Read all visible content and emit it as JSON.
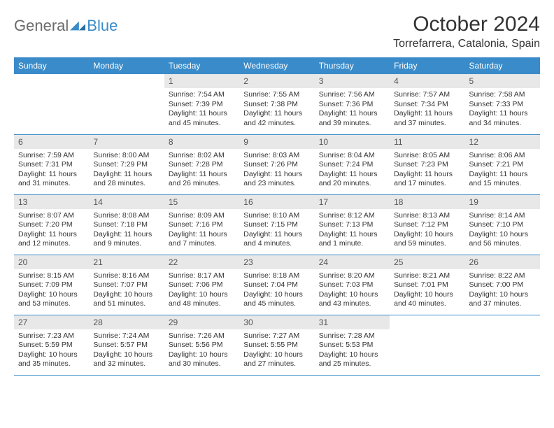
{
  "brand": {
    "part1": "General",
    "part2": "Blue"
  },
  "title": "October 2024",
  "location": "Torrefarrera, Catalonia, Spain",
  "colors": {
    "accent": "#3a8bc9",
    "daynum_bg": "#e8e8e8",
    "text": "#333333",
    "logo_gray": "#6b6b6b"
  },
  "day_headers": [
    "Sunday",
    "Monday",
    "Tuesday",
    "Wednesday",
    "Thursday",
    "Friday",
    "Saturday"
  ],
  "weeks": [
    [
      {
        "n": "",
        "sr": "",
        "ss": "",
        "dl": ""
      },
      {
        "n": "",
        "sr": "",
        "ss": "",
        "dl": ""
      },
      {
        "n": "1",
        "sr": "Sunrise: 7:54 AM",
        "ss": "Sunset: 7:39 PM",
        "dl": "Daylight: 11 hours and 45 minutes."
      },
      {
        "n": "2",
        "sr": "Sunrise: 7:55 AM",
        "ss": "Sunset: 7:38 PM",
        "dl": "Daylight: 11 hours and 42 minutes."
      },
      {
        "n": "3",
        "sr": "Sunrise: 7:56 AM",
        "ss": "Sunset: 7:36 PM",
        "dl": "Daylight: 11 hours and 39 minutes."
      },
      {
        "n": "4",
        "sr": "Sunrise: 7:57 AM",
        "ss": "Sunset: 7:34 PM",
        "dl": "Daylight: 11 hours and 37 minutes."
      },
      {
        "n": "5",
        "sr": "Sunrise: 7:58 AM",
        "ss": "Sunset: 7:33 PM",
        "dl": "Daylight: 11 hours and 34 minutes."
      }
    ],
    [
      {
        "n": "6",
        "sr": "Sunrise: 7:59 AM",
        "ss": "Sunset: 7:31 PM",
        "dl": "Daylight: 11 hours and 31 minutes."
      },
      {
        "n": "7",
        "sr": "Sunrise: 8:00 AM",
        "ss": "Sunset: 7:29 PM",
        "dl": "Daylight: 11 hours and 28 minutes."
      },
      {
        "n": "8",
        "sr": "Sunrise: 8:02 AM",
        "ss": "Sunset: 7:28 PM",
        "dl": "Daylight: 11 hours and 26 minutes."
      },
      {
        "n": "9",
        "sr": "Sunrise: 8:03 AM",
        "ss": "Sunset: 7:26 PM",
        "dl": "Daylight: 11 hours and 23 minutes."
      },
      {
        "n": "10",
        "sr": "Sunrise: 8:04 AM",
        "ss": "Sunset: 7:24 PM",
        "dl": "Daylight: 11 hours and 20 minutes."
      },
      {
        "n": "11",
        "sr": "Sunrise: 8:05 AM",
        "ss": "Sunset: 7:23 PM",
        "dl": "Daylight: 11 hours and 17 minutes."
      },
      {
        "n": "12",
        "sr": "Sunrise: 8:06 AM",
        "ss": "Sunset: 7:21 PM",
        "dl": "Daylight: 11 hours and 15 minutes."
      }
    ],
    [
      {
        "n": "13",
        "sr": "Sunrise: 8:07 AM",
        "ss": "Sunset: 7:20 PM",
        "dl": "Daylight: 11 hours and 12 minutes."
      },
      {
        "n": "14",
        "sr": "Sunrise: 8:08 AM",
        "ss": "Sunset: 7:18 PM",
        "dl": "Daylight: 11 hours and 9 minutes."
      },
      {
        "n": "15",
        "sr": "Sunrise: 8:09 AM",
        "ss": "Sunset: 7:16 PM",
        "dl": "Daylight: 11 hours and 7 minutes."
      },
      {
        "n": "16",
        "sr": "Sunrise: 8:10 AM",
        "ss": "Sunset: 7:15 PM",
        "dl": "Daylight: 11 hours and 4 minutes."
      },
      {
        "n": "17",
        "sr": "Sunrise: 8:12 AM",
        "ss": "Sunset: 7:13 PM",
        "dl": "Daylight: 11 hours and 1 minute."
      },
      {
        "n": "18",
        "sr": "Sunrise: 8:13 AM",
        "ss": "Sunset: 7:12 PM",
        "dl": "Daylight: 10 hours and 59 minutes."
      },
      {
        "n": "19",
        "sr": "Sunrise: 8:14 AM",
        "ss": "Sunset: 7:10 PM",
        "dl": "Daylight: 10 hours and 56 minutes."
      }
    ],
    [
      {
        "n": "20",
        "sr": "Sunrise: 8:15 AM",
        "ss": "Sunset: 7:09 PM",
        "dl": "Daylight: 10 hours and 53 minutes."
      },
      {
        "n": "21",
        "sr": "Sunrise: 8:16 AM",
        "ss": "Sunset: 7:07 PM",
        "dl": "Daylight: 10 hours and 51 minutes."
      },
      {
        "n": "22",
        "sr": "Sunrise: 8:17 AM",
        "ss": "Sunset: 7:06 PM",
        "dl": "Daylight: 10 hours and 48 minutes."
      },
      {
        "n": "23",
        "sr": "Sunrise: 8:18 AM",
        "ss": "Sunset: 7:04 PM",
        "dl": "Daylight: 10 hours and 45 minutes."
      },
      {
        "n": "24",
        "sr": "Sunrise: 8:20 AM",
        "ss": "Sunset: 7:03 PM",
        "dl": "Daylight: 10 hours and 43 minutes."
      },
      {
        "n": "25",
        "sr": "Sunrise: 8:21 AM",
        "ss": "Sunset: 7:01 PM",
        "dl": "Daylight: 10 hours and 40 minutes."
      },
      {
        "n": "26",
        "sr": "Sunrise: 8:22 AM",
        "ss": "Sunset: 7:00 PM",
        "dl": "Daylight: 10 hours and 37 minutes."
      }
    ],
    [
      {
        "n": "27",
        "sr": "Sunrise: 7:23 AM",
        "ss": "Sunset: 5:59 PM",
        "dl": "Daylight: 10 hours and 35 minutes."
      },
      {
        "n": "28",
        "sr": "Sunrise: 7:24 AM",
        "ss": "Sunset: 5:57 PM",
        "dl": "Daylight: 10 hours and 32 minutes."
      },
      {
        "n": "29",
        "sr": "Sunrise: 7:26 AM",
        "ss": "Sunset: 5:56 PM",
        "dl": "Daylight: 10 hours and 30 minutes."
      },
      {
        "n": "30",
        "sr": "Sunrise: 7:27 AM",
        "ss": "Sunset: 5:55 PM",
        "dl": "Daylight: 10 hours and 27 minutes."
      },
      {
        "n": "31",
        "sr": "Sunrise: 7:28 AM",
        "ss": "Sunset: 5:53 PM",
        "dl": "Daylight: 10 hours and 25 minutes."
      },
      {
        "n": "",
        "sr": "",
        "ss": "",
        "dl": ""
      },
      {
        "n": "",
        "sr": "",
        "ss": "",
        "dl": ""
      }
    ]
  ]
}
